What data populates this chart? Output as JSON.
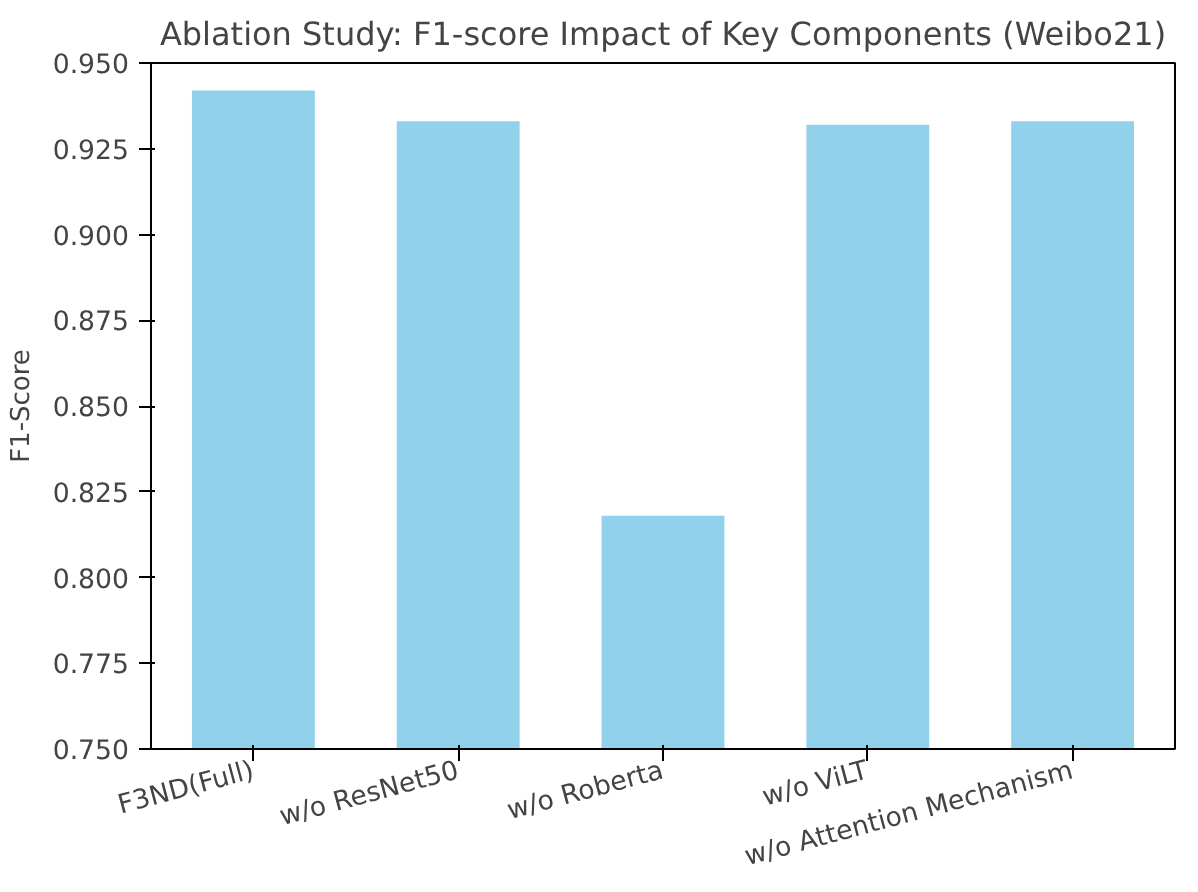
{
  "chart_data": {
    "type": "bar",
    "title": "Ablation Study: F1-score Impact of Key Components (Weibo21)",
    "ylabel": "F1-Score",
    "categories": [
      "F3ND(Full)",
      "w/o ResNet50",
      "w/o Roberta",
      "w/o ViLT",
      "w/o Attention Mechanism"
    ],
    "values": [
      0.942,
      0.933,
      0.818,
      0.932,
      0.933
    ],
    "color": "#92d1ec",
    "ylim": [
      0.75,
      0.95
    ],
    "yticks": [
      {
        "value": 0.75,
        "label": "0.750"
      },
      {
        "value": 0.775,
        "label": "0.775"
      },
      {
        "value": 0.8,
        "label": "0.800"
      },
      {
        "value": 0.825,
        "label": "0.825"
      },
      {
        "value": 0.85,
        "label": "0.850"
      },
      {
        "value": 0.875,
        "label": "0.875"
      },
      {
        "value": 0.9,
        "label": "0.900"
      },
      {
        "value": 0.925,
        "label": "0.925"
      },
      {
        "value": 0.95,
        "label": "0.950"
      }
    ],
    "grid": false
  }
}
